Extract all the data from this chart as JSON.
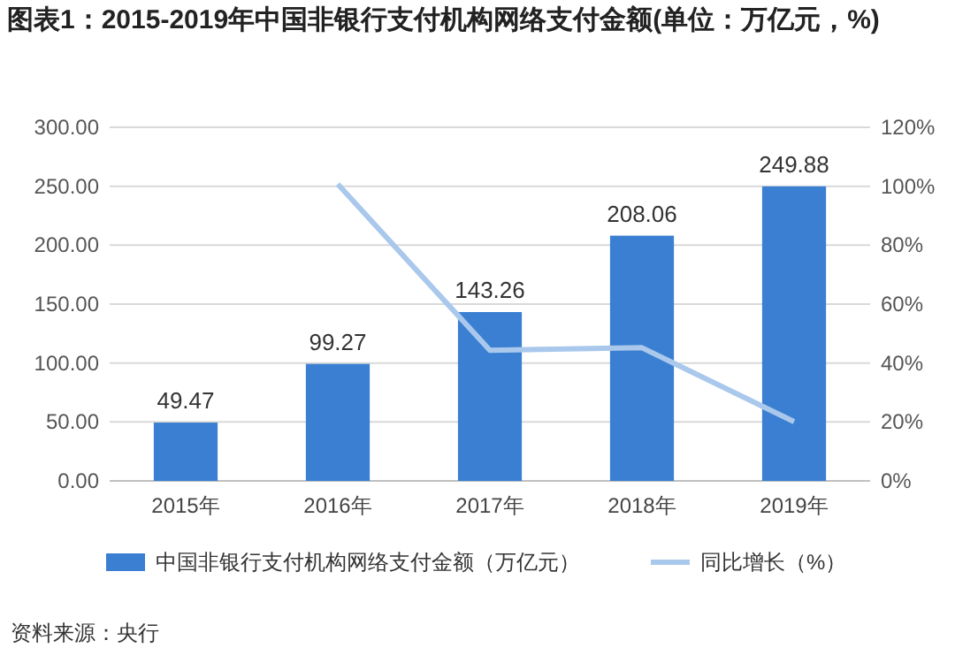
{
  "chart_data": {
    "type": "bar",
    "title": "图表1：2015-2019年中国非银行支付机构网络支付金额(单位：万亿元，%)",
    "categories": [
      "2015年",
      "2016年",
      "2017年",
      "2018年",
      "2019年"
    ],
    "series": [
      {
        "name": "中国非银行支付机构网络支付金额（万亿元）",
        "color": "#3a7fd1",
        "values": [
          49.47,
          99.27,
          143.26,
          208.06,
          249.88
        ],
        "value_labels": [
          "49.47",
          "99.27",
          "143.26",
          "208.06",
          "249.88"
        ]
      },
      {
        "name": "同比增长（%）",
        "type": "line",
        "axis": "y2",
        "color": "#a9c8ec",
        "values": [
          null,
          100.7,
          44.3,
          45.2,
          20.1
        ]
      }
    ],
    "ylim": [
      0,
      300
    ],
    "yticks": [
      {
        "value": 0,
        "label": "0.00"
      },
      {
        "value": 50,
        "label": "50.00"
      },
      {
        "value": 100,
        "label": "100.00"
      },
      {
        "value": 150,
        "label": "150.00"
      },
      {
        "value": 200,
        "label": "200.00"
      },
      {
        "value": 250,
        "label": "250.00"
      },
      {
        "value": 300,
        "label": "300.00"
      }
    ],
    "y2lim": [
      0,
      120
    ],
    "y2ticks": [
      {
        "value": 0,
        "label": "0%"
      },
      {
        "value": 20,
        "label": "20%"
      },
      {
        "value": 40,
        "label": "40%"
      },
      {
        "value": 60,
        "label": "60%"
      },
      {
        "value": 80,
        "label": "80%"
      },
      {
        "value": 100,
        "label": "100%"
      },
      {
        "value": 120,
        "label": "120%"
      }
    ],
    "grid": "y",
    "legend": "bottom",
    "annotations": [
      "资料来源：央行"
    ]
  }
}
